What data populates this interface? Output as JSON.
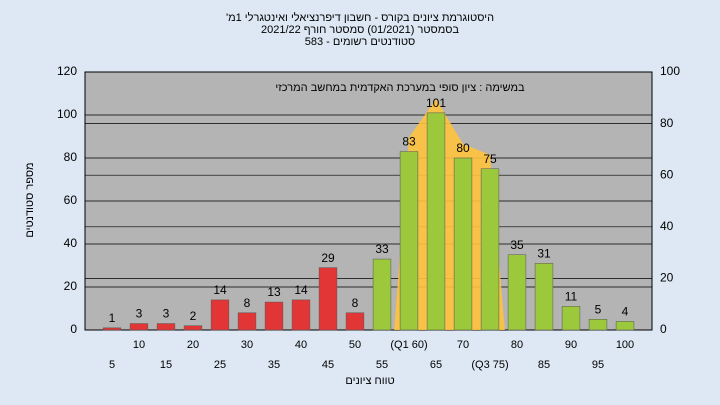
{
  "chart_data": {
    "type": "bar",
    "title": "'היסטוגרמת ציונים בקורס - חשבון דיפרנציאלי ואינטגרלי 1מ",
    "subtitle": "בסמסטר  (01/2021)  סמסטר חורף 2021/22",
    "subtitle2": "סטודנטים רשומים - 583",
    "annotation": "במשימה : ציון סופי במערכת האקדמית במחשב המרכזי",
    "y_label": "מספר סטודנטים",
    "x_label": "טווח ציונים",
    "categories": [
      "5",
      "10",
      "15",
      "20",
      "25",
      "30",
      "35",
      "40",
      "45",
      "50",
      "55",
      "(Q1 60)",
      "65",
      "70",
      "(Q3 75)",
      "80",
      "85",
      "90",
      "95",
      "100"
    ],
    "values": [
      1,
      3,
      3,
      2,
      14,
      8,
      13,
      14,
      29,
      8,
      33,
      83,
      101,
      80,
      75,
      35,
      31,
      11,
      5,
      4
    ],
    "colors": [
      "#e23636",
      "#e23636",
      "#e23636",
      "#e23636",
      "#e23636",
      "#e23636",
      "#e23636",
      "#e23636",
      "#e23636",
      "#e23636",
      "#9cc83c",
      "#9cc83c",
      "#9cc83c",
      "#9cc83c",
      "#9cc83c",
      "#9cc83c",
      "#9cc83c",
      "#9cc83c",
      "#9cc83c",
      "#9cc83c"
    ],
    "ylim": [
      0,
      120
    ],
    "yticks": [
      0,
      20,
      40,
      60,
      80,
      100,
      120
    ],
    "y2lim": [
      0,
      100
    ],
    "y2ticks": [
      0,
      20,
      40,
      60,
      80,
      100
    ],
    "grid": true
  }
}
